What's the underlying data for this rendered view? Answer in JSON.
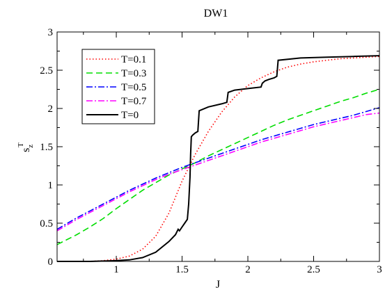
{
  "chart_data": {
    "type": "line",
    "title": "DW1",
    "xlabel": "J",
    "ylabel": {
      "main": "s",
      "sub": "z",
      "sup": "T"
    },
    "xlim": [
      0.55,
      3.0
    ],
    "ylim": [
      0,
      3
    ],
    "xticks": [
      1,
      1.5,
      2,
      2.5,
      3
    ],
    "xtick_labels": [
      "1",
      "1.5",
      "2",
      "2.5",
      "3"
    ],
    "yticks": [
      0,
      0.5,
      1,
      1.5,
      2,
      2.5,
      3
    ],
    "ytick_labels": [
      "0",
      "0.5",
      "1",
      "1.5",
      "2",
      "2.5",
      "3"
    ],
    "grid": false,
    "legend_position": "top-left",
    "series": [
      {
        "name": "T=0.1",
        "color": "#ff0000",
        "dash": "dotted",
        "x": [
          0.55,
          0.7,
          0.8,
          0.9,
          1.0,
          1.1,
          1.2,
          1.3,
          1.4,
          1.5,
          1.6,
          1.7,
          1.8,
          1.9,
          2.0,
          2.1,
          2.2,
          2.3,
          2.4,
          2.5,
          2.6,
          2.7,
          2.8,
          2.9,
          3.0
        ],
        "y": [
          0.0,
          0.0,
          0.0,
          0.01,
          0.03,
          0.07,
          0.16,
          0.33,
          0.63,
          1.05,
          1.4,
          1.7,
          1.95,
          2.15,
          2.3,
          2.4,
          2.48,
          2.54,
          2.58,
          2.61,
          2.63,
          2.65,
          2.66,
          2.67,
          2.68
        ]
      },
      {
        "name": "T=0.3",
        "color": "#00dd00",
        "dash": "dashed",
        "x": [
          0.55,
          0.7,
          0.8,
          0.9,
          1.0,
          1.1,
          1.2,
          1.3,
          1.4,
          1.5,
          1.6,
          1.7,
          1.8,
          1.9,
          2.0,
          2.1,
          2.2,
          2.3,
          2.4,
          2.5,
          2.6,
          2.7,
          2.8,
          2.9,
          3.0
        ],
        "y": [
          0.22,
          0.35,
          0.45,
          0.56,
          0.69,
          0.81,
          0.93,
          1.03,
          1.13,
          1.21,
          1.29,
          1.38,
          1.46,
          1.54,
          1.62,
          1.7,
          1.78,
          1.85,
          1.91,
          1.97,
          2.03,
          2.09,
          2.14,
          2.2,
          2.25
        ]
      },
      {
        "name": "T=0.5",
        "color": "#0000ff",
        "dash": "dashdot",
        "x": [
          0.55,
          0.7,
          0.8,
          0.9,
          1.0,
          1.1,
          1.2,
          1.3,
          1.4,
          1.5,
          1.6,
          1.7,
          1.8,
          1.9,
          2.0,
          2.1,
          2.2,
          2.3,
          2.4,
          2.5,
          2.6,
          2.7,
          2.8,
          2.9,
          3.0
        ],
        "y": [
          0.42,
          0.57,
          0.66,
          0.75,
          0.84,
          0.93,
          1.01,
          1.09,
          1.16,
          1.23,
          1.29,
          1.35,
          1.41,
          1.47,
          1.53,
          1.59,
          1.64,
          1.69,
          1.74,
          1.79,
          1.83,
          1.87,
          1.91,
          1.96,
          2.01
        ]
      },
      {
        "name": "T=0.7",
        "color": "#ff00ff",
        "dash": "dashdot",
        "x": [
          0.55,
          0.7,
          0.8,
          0.9,
          1.0,
          1.1,
          1.2,
          1.3,
          1.4,
          1.5,
          1.6,
          1.7,
          1.8,
          1.9,
          2.0,
          2.1,
          2.2,
          2.3,
          2.4,
          2.5,
          2.6,
          2.7,
          2.8,
          2.9,
          3.0
        ],
        "y": [
          0.4,
          0.55,
          0.64,
          0.73,
          0.82,
          0.91,
          0.99,
          1.07,
          1.14,
          1.2,
          1.26,
          1.32,
          1.38,
          1.44,
          1.5,
          1.56,
          1.61,
          1.66,
          1.71,
          1.76,
          1.8,
          1.84,
          1.88,
          1.92,
          1.94
        ]
      },
      {
        "name": "T=0",
        "color": "#000000",
        "dash": "solid",
        "x": [
          0.55,
          0.8,
          1.0,
          1.1,
          1.2,
          1.3,
          1.4,
          1.45,
          1.47,
          1.48,
          1.5,
          1.52,
          1.54,
          1.55,
          1.56,
          1.565,
          1.57,
          1.58,
          1.6,
          1.62,
          1.63,
          1.7,
          1.8,
          1.84,
          1.85,
          1.9,
          2.0,
          2.1,
          2.11,
          2.13,
          2.16,
          2.2,
          2.22,
          2.23,
          2.4,
          2.6,
          2.8,
          3.0
        ],
        "y": [
          0.0,
          0.0,
          0.01,
          0.02,
          0.05,
          0.12,
          0.26,
          0.35,
          0.42,
          0.4,
          0.45,
          0.5,
          0.55,
          0.75,
          1.1,
          1.4,
          1.63,
          1.65,
          1.68,
          1.7,
          1.97,
          2.02,
          2.06,
          2.08,
          2.21,
          2.24,
          2.26,
          2.28,
          2.33,
          2.36,
          2.38,
          2.4,
          2.42,
          2.63,
          2.66,
          2.67,
          2.68,
          2.69
        ]
      }
    ]
  }
}
